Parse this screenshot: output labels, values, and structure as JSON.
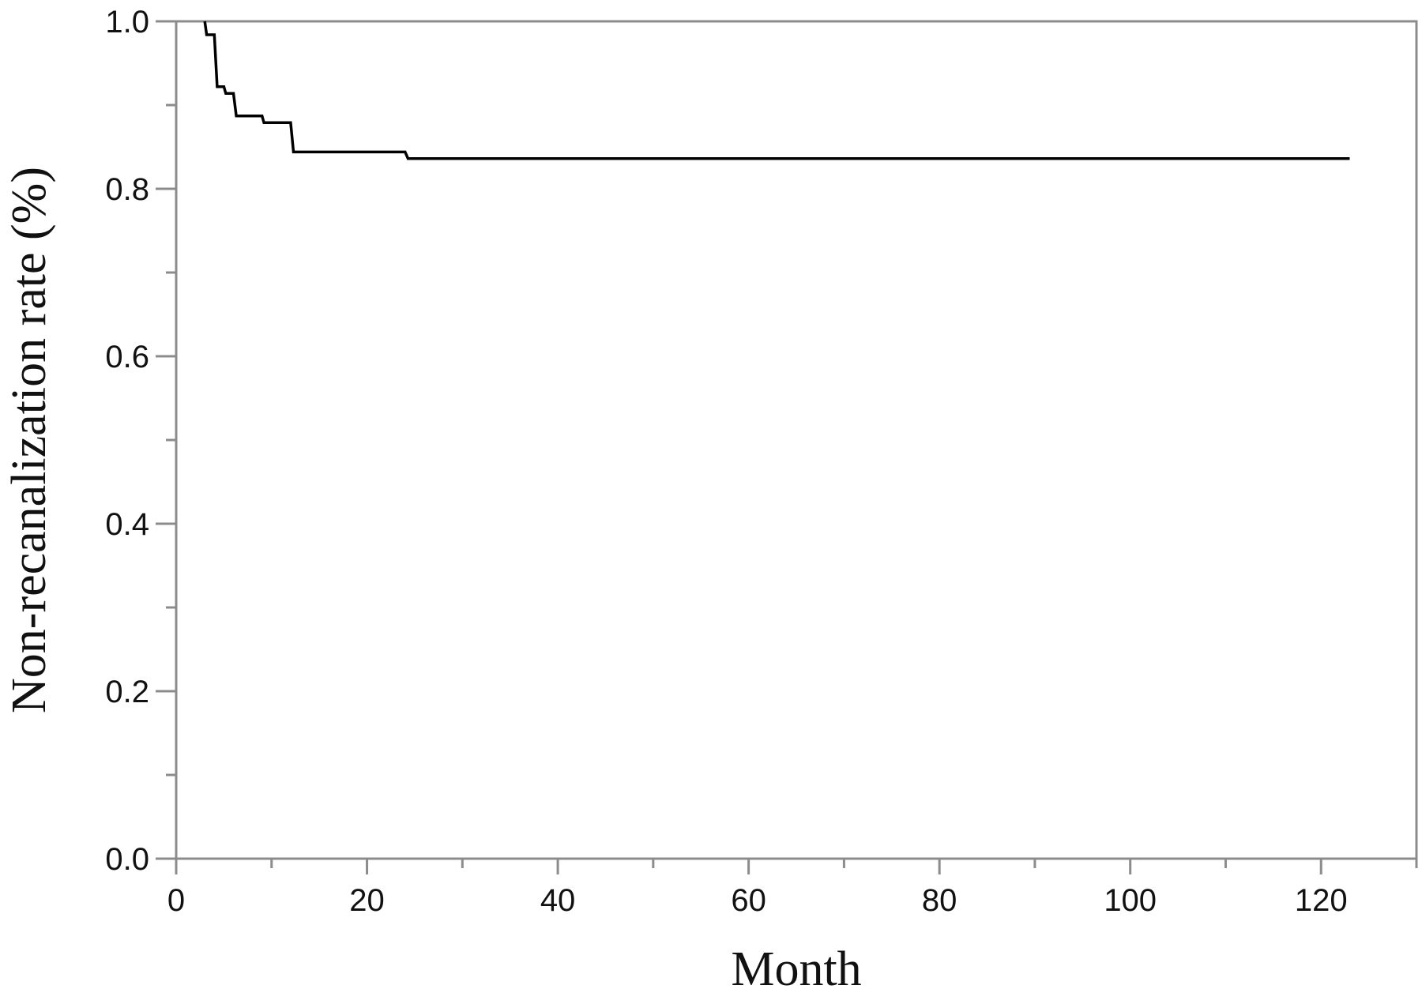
{
  "chart_data": {
    "type": "line",
    "subtype": "kaplan-meier-step",
    "title": "",
    "xlabel": "Month",
    "ylabel": "Non-recanalization rate (%)",
    "xlim": [
      0,
      130
    ],
    "ylim": [
      0,
      1.0
    ],
    "x_major_ticks": [
      0,
      20,
      40,
      60,
      80,
      100,
      120
    ],
    "x_tick_labels": [
      "0",
      "20",
      "40",
      "60",
      "80",
      "100",
      "120"
    ],
    "x_minor_ticks": [
      10,
      30,
      50,
      70,
      90,
      110,
      130
    ],
    "y_major_ticks": [
      0.0,
      0.2,
      0.4,
      0.6,
      0.8,
      1.0
    ],
    "y_tick_labels": [
      "0.0",
      "0.2",
      "0.4",
      "0.6",
      "0.8",
      "1.0"
    ],
    "y_minor_ticks": [
      0.1,
      0.3,
      0.5,
      0.7,
      0.9
    ],
    "grid": false,
    "frame": "box",
    "colors": {
      "axis": "#8c8c8c",
      "series": "#000000",
      "text": "#111111"
    },
    "series": [
      {
        "color": "#000000",
        "x": [
          3,
          3.2,
          4,
          4.3,
          5,
          5.2,
          6,
          6.3,
          9,
          9.2,
          12,
          12.3,
          24,
          24.3,
          123
        ],
        "y": [
          1.0,
          0.984,
          0.984,
          0.922,
          0.922,
          0.914,
          0.914,
          0.887,
          0.887,
          0.879,
          0.879,
          0.844,
          0.844,
          0.836,
          0.836
        ]
      }
    ]
  }
}
